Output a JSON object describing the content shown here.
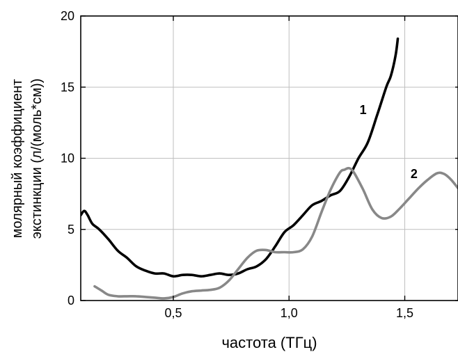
{
  "chart_data": {
    "type": "line",
    "xlabel": "частота (ТГц)",
    "ylabel_lines": [
      "молярный коэффициент",
      "экстинкции  (л/(моль*см))"
    ],
    "xlim": [
      0.1,
      1.73
    ],
    "ylim": [
      0,
      20
    ],
    "x_ticks": [
      0.5,
      1.0,
      1.5
    ],
    "x_tick_labels": [
      "0,5",
      "1,0",
      "1,5"
    ],
    "y_ticks": [
      0,
      5,
      10,
      15,
      20
    ],
    "y_tick_labels": [
      "0",
      "5",
      "10",
      "15",
      "20"
    ],
    "grid": true,
    "series": [
      {
        "name": "1",
        "color": "#000000",
        "x": [
          0.1,
          0.115,
          0.13,
          0.15,
          0.18,
          0.22,
          0.26,
          0.3,
          0.34,
          0.38,
          0.42,
          0.46,
          0.5,
          0.54,
          0.58,
          0.62,
          0.66,
          0.7,
          0.74,
          0.78,
          0.82,
          0.86,
          0.9,
          0.94,
          0.98,
          1.02,
          1.06,
          1.1,
          1.14,
          1.18,
          1.22,
          1.26,
          1.3,
          1.34,
          1.38,
          1.42,
          1.44,
          1.46,
          1.47
        ],
        "y": [
          6.0,
          6.3,
          6.0,
          5.4,
          5.0,
          4.3,
          3.5,
          3.0,
          2.4,
          2.1,
          1.9,
          1.9,
          1.7,
          1.8,
          1.8,
          1.7,
          1.8,
          1.9,
          1.8,
          1.9,
          2.2,
          2.4,
          2.9,
          3.8,
          4.8,
          5.3,
          6.0,
          6.7,
          7.0,
          7.4,
          7.7,
          8.7,
          10.0,
          11.1,
          13.0,
          15.0,
          15.8,
          17.2,
          18.4
        ]
      },
      {
        "name": "2",
        "color": "#888888",
        "x": [
          0.16,
          0.19,
          0.22,
          0.26,
          0.3,
          0.34,
          0.38,
          0.42,
          0.46,
          0.5,
          0.54,
          0.58,
          0.62,
          0.66,
          0.7,
          0.74,
          0.78,
          0.82,
          0.86,
          0.9,
          0.94,
          0.98,
          1.02,
          1.06,
          1.1,
          1.14,
          1.18,
          1.22,
          1.24,
          1.26,
          1.28,
          1.32,
          1.36,
          1.4,
          1.44,
          1.48,
          1.52,
          1.56,
          1.6,
          1.64,
          1.67,
          1.7,
          1.73
        ],
        "y": [
          1.0,
          0.7,
          0.4,
          0.3,
          0.3,
          0.3,
          0.25,
          0.2,
          0.15,
          0.25,
          0.5,
          0.65,
          0.7,
          0.75,
          0.9,
          1.4,
          2.2,
          3.0,
          3.5,
          3.55,
          3.4,
          3.4,
          3.4,
          3.6,
          4.5,
          6.2,
          7.8,
          9.0,
          9.2,
          9.3,
          9.0,
          7.8,
          6.4,
          5.8,
          5.9,
          6.5,
          7.2,
          7.9,
          8.5,
          8.95,
          8.9,
          8.5,
          7.9
        ]
      }
    ],
    "annotations": [
      {
        "text": "1",
        "x": 1.32,
        "y": 13.1
      },
      {
        "text": "2",
        "x": 1.54,
        "y": 8.6
      }
    ]
  }
}
